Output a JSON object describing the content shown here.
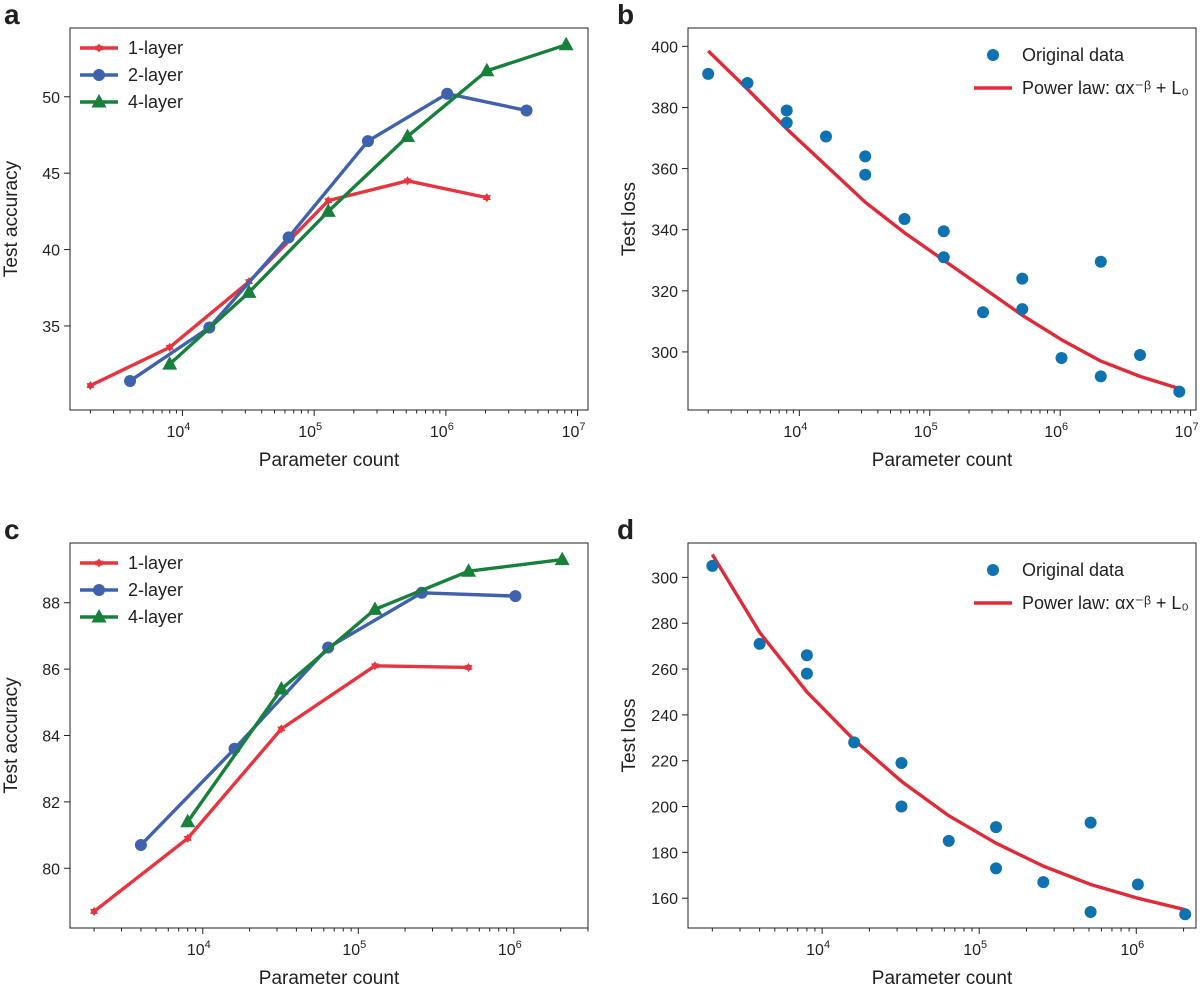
{
  "panels": {
    "a": {
      "letter": "a"
    },
    "b": {
      "letter": "b"
    },
    "c": {
      "letter": "c"
    },
    "d": {
      "letter": "d"
    }
  },
  "colors": {
    "one_layer": "#e8343f",
    "two_layer": "#3e62ad",
    "four_layer": "#17803a",
    "dots": "#0f72b0",
    "fit": "#e12a38"
  },
  "chart_data": [
    {
      "id": "a",
      "type": "line",
      "xscale": "log",
      "xlim": [
        1400,
        12000000
      ],
      "ylim": [
        29.5,
        54.5
      ],
      "xlabel": "Parameter count",
      "ylabel": "Test accuracy",
      "xticks": [
        {
          "label": "10",
          "exp": "4",
          "value": 10000
        },
        {
          "label": "10",
          "exp": "5",
          "value": 100000
        },
        {
          "label": "10",
          "exp": "6",
          "value": 1000000
        },
        {
          "label": "10",
          "exp": "7",
          "value": 10000000
        }
      ],
      "yticks": [
        35,
        40,
        45,
        50
      ],
      "legend": [
        "1-layer",
        "2-layer",
        "4-layer"
      ],
      "series": [
        {
          "name": "1-layer",
          "marker": "star",
          "x": [
            2000,
            8000,
            32000,
            128000,
            512000,
            2048000
          ],
          "y": [
            31.1,
            33.6,
            37.9,
            43.2,
            44.5,
            43.4
          ]
        },
        {
          "name": "2-layer",
          "marker": "circle",
          "x": [
            4000,
            16000,
            64000,
            256000,
            1024000,
            4096000
          ],
          "y": [
            31.4,
            34.9,
            40.8,
            47.1,
            50.2,
            49.1
          ]
        },
        {
          "name": "4-layer",
          "marker": "triangle",
          "x": [
            8000,
            32000,
            128000,
            512000,
            2048000,
            8192000
          ],
          "y": [
            32.5,
            37.2,
            42.5,
            47.4,
            51.7,
            53.4
          ]
        }
      ]
    },
    {
      "id": "b",
      "type": "scatter",
      "xscale": "log",
      "xlim": [
        1400,
        11000000
      ],
      "ylim": [
        281,
        406
      ],
      "xlabel": "Parameter count",
      "ylabel": "Test loss",
      "xticks": [
        {
          "label": "10",
          "exp": "4",
          "value": 10000
        },
        {
          "label": "10",
          "exp": "5",
          "value": 100000
        },
        {
          "label": "10",
          "exp": "6",
          "value": 1000000
        },
        {
          "label": "10",
          "exp": "7",
          "value": 10000000
        }
      ],
      "yticks": [
        300,
        320,
        340,
        360,
        380,
        400
      ],
      "legend": [
        "Original data",
        "Power law: αx⁻ᵝ + L₀"
      ],
      "points": {
        "x": [
          2000,
          4000,
          8000,
          8000,
          16000,
          32000,
          32000,
          64000,
          128000,
          128000,
          256000,
          512000,
          512000,
          1024000,
          2048000,
          2048000,
          4096000,
          8192000
        ],
        "y": [
          391,
          388,
          379,
          375,
          370.5,
          364,
          358,
          343.5,
          339.5,
          331,
          313,
          324,
          314,
          298,
          329.5,
          292,
          299,
          287
        ]
      },
      "fit": {
        "x": [
          2000,
          4000,
          8000,
          16000,
          32000,
          64000,
          128000,
          256000,
          512000,
          1024000,
          2048000,
          4096000,
          8192000
        ],
        "y": [
          398.5,
          386,
          373,
          361,
          349,
          339,
          330,
          321,
          312,
          304,
          297,
          292,
          288
        ]
      }
    },
    {
      "id": "c",
      "type": "line",
      "xscale": "log",
      "xlim": [
        1400,
        3000000
      ],
      "ylim": [
        78.2,
        89.8
      ],
      "xlabel": "Parameter count",
      "ylabel": "Test accuracy",
      "xticks": [
        {
          "label": "10",
          "exp": "4",
          "value": 10000
        },
        {
          "label": "10",
          "exp": "5",
          "value": 100000
        },
        {
          "label": "10",
          "exp": "6",
          "value": 1000000
        }
      ],
      "yticks": [
        80,
        82,
        84,
        86,
        88
      ],
      "legend": [
        "1-layer",
        "2-layer",
        "4-layer"
      ],
      "series": [
        {
          "name": "1-layer",
          "marker": "star",
          "x": [
            2000,
            8000,
            32000,
            128000,
            512000
          ],
          "y": [
            78.7,
            80.9,
            84.2,
            86.1,
            86.05
          ]
        },
        {
          "name": "2-layer",
          "marker": "circle",
          "x": [
            4000,
            16000,
            64000,
            256000,
            1024000
          ],
          "y": [
            80.7,
            83.6,
            86.65,
            88.3,
            88.2
          ]
        },
        {
          "name": "4-layer",
          "marker": "triangle",
          "x": [
            8000,
            32000,
            128000,
            512000,
            2048000
          ],
          "y": [
            81.4,
            85.4,
            87.8,
            88.95,
            89.3
          ]
        }
      ]
    },
    {
      "id": "d",
      "type": "scatter",
      "xscale": "log",
      "xlim": [
        1400,
        2400000
      ],
      "ylim": [
        147,
        315
      ],
      "xlabel": "Parameter count",
      "ylabel": "Test loss",
      "xticks": [
        {
          "label": "10",
          "exp": "4",
          "value": 10000
        },
        {
          "label": "10",
          "exp": "5",
          "value": 100000
        },
        {
          "label": "10",
          "exp": "6",
          "value": 1000000
        }
      ],
      "yticks": [
        160,
        180,
        200,
        220,
        240,
        260,
        280,
        300
      ],
      "legend": [
        "Original data",
        "Power law: αx⁻ᵝ + L₀"
      ],
      "points": {
        "x": [
          2000,
          4000,
          8000,
          8000,
          16000,
          32000,
          32000,
          64000,
          128000,
          128000,
          256000,
          512000,
          512000,
          1024000,
          2048000
        ],
        "y": [
          305,
          271,
          266,
          258,
          228,
          219,
          200,
          185,
          191,
          173,
          167,
          193,
          154,
          166,
          153
        ]
      },
      "fit": {
        "x": [
          2000,
          4000,
          8000,
          16000,
          32000,
          64000,
          128000,
          256000,
          512000,
          1024000,
          2048000
        ],
        "y": [
          310,
          276,
          250,
          229,
          211,
          196,
          184,
          174,
          166,
          160,
          155
        ]
      }
    }
  ]
}
